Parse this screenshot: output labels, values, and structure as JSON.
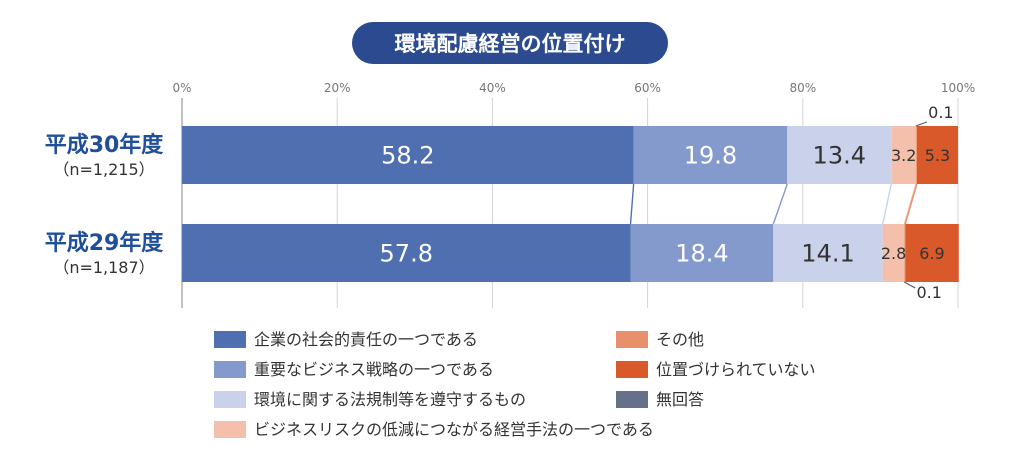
{
  "chart_data": {
    "type": "bar",
    "orientation": "horizontal-stacked-100",
    "title": "環境配慮経営の位置付け",
    "x_ticks": [
      "0%",
      "20%",
      "40%",
      "60%",
      "80%",
      "100%"
    ],
    "xlim": [
      0,
      100
    ],
    "categories": [
      {
        "label": "平成30年度",
        "sample": "（n=1,215）"
      },
      {
        "label": "平成29年度",
        "sample": "（n=1,187）"
      }
    ],
    "series": [
      {
        "name": "企業の社会的責任の一つである",
        "color": "#4f6fb0",
        "values": [
          58.2,
          57.8
        ],
        "labels": [
          "58.2",
          "57.8"
        ],
        "label_color": "#ffffff"
      },
      {
        "name": "重要なビジネス戦略の一つである",
        "color": "#8499cc",
        "values": [
          19.8,
          18.4
        ],
        "labels": [
          "19.8",
          "18.4"
        ],
        "label_color": "#ffffff"
      },
      {
        "name": "環境に関する法規制等を遵守するもの",
        "color": "#c9d2ea",
        "values": [
          13.4,
          14.1
        ],
        "labels": [
          "13.4",
          "14.1"
        ],
        "label_color": "#333333"
      },
      {
        "name": "ビジネスリスクの低減につながる経営手法の一つである",
        "color": "#f4c0ab",
        "values": [
          3.2,
          2.8
        ],
        "labels": [
          "3.2",
          "2.8"
        ],
        "label_color": "#333333"
      },
      {
        "name": "その他",
        "color": "#e88f6c",
        "values": [
          0.1,
          0.1
        ],
        "labels": [
          "0.1",
          "0.1"
        ],
        "label_color": "#333333"
      },
      {
        "name": "位置づけられていない",
        "color": "#d9592a",
        "values": [
          5.3,
          6.9
        ],
        "labels": [
          "5.3",
          "6.9"
        ],
        "label_color": "#333333"
      },
      {
        "name": "無回答",
        "color": "#67708a",
        "values": [
          0,
          0
        ],
        "labels": [
          "",
          ""
        ],
        "label_color": "#333333"
      }
    ],
    "legend": {
      "left_column": [
        "企業の社会的責任の一つである",
        "重要なビジネス戦略の一つである",
        "環境に関する法規制等を遵守するもの",
        "ビジネスリスクの低減につながる経営手法の一つである"
      ],
      "right_column": [
        "その他",
        "位置づけられていない",
        "無回答"
      ]
    },
    "title_color": "#2c4a8f",
    "category_label_color": "#1f4e9a"
  }
}
